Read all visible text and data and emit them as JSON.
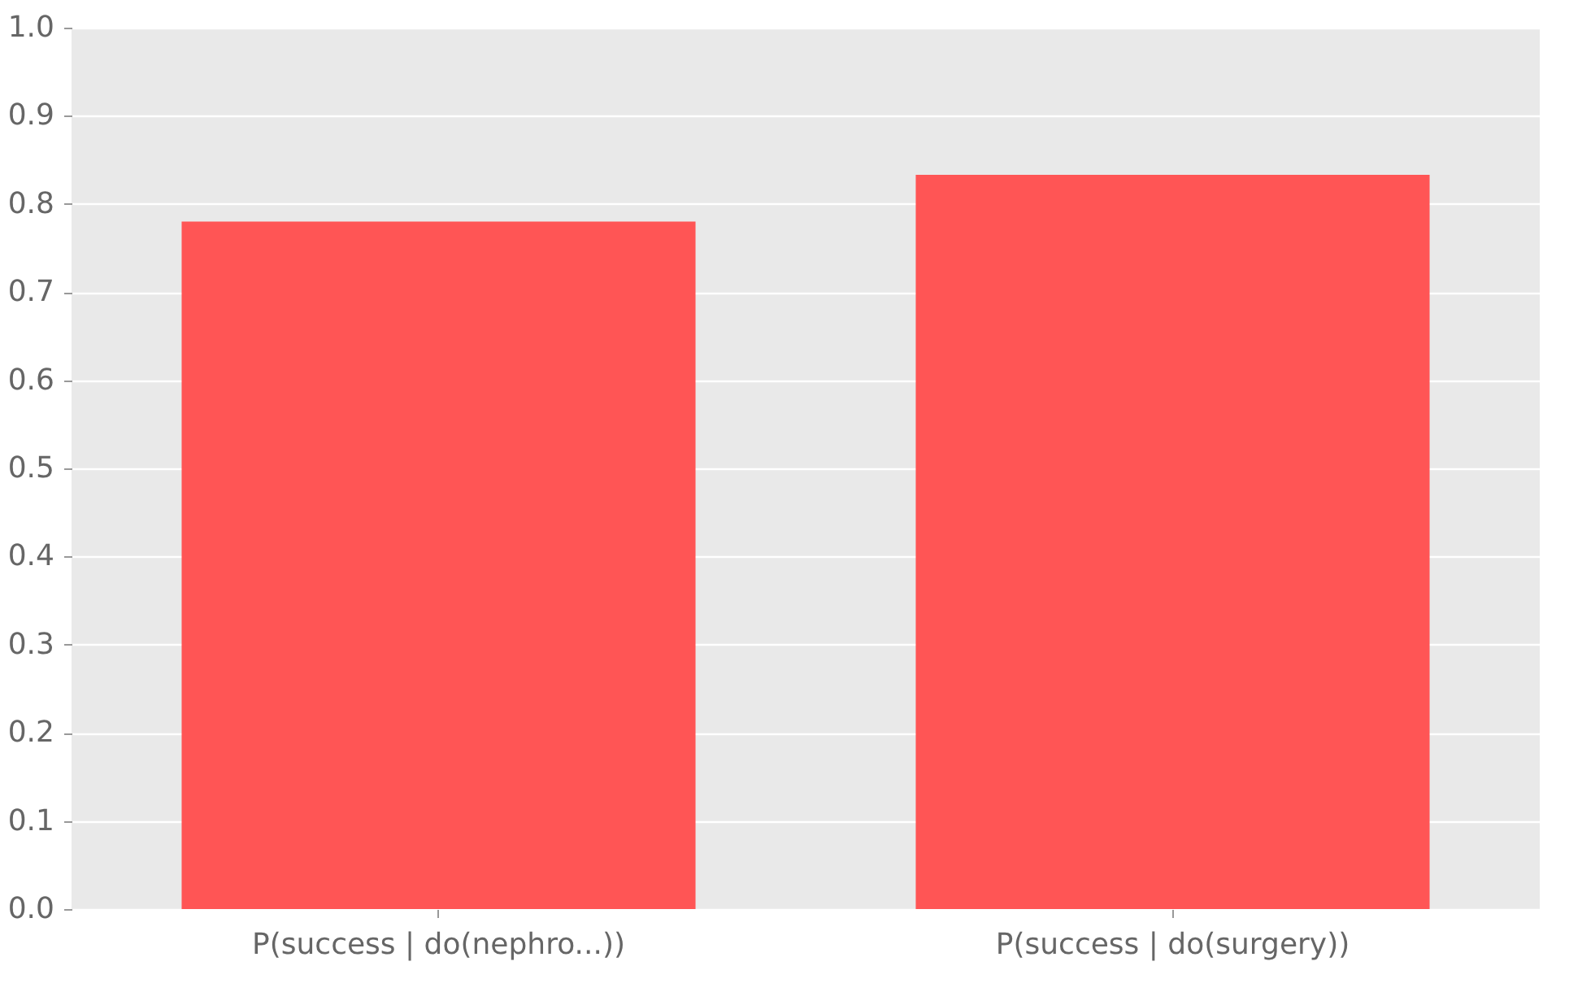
{
  "chart_data": {
    "type": "bar",
    "categories": [
      "P(success | do(nephro...))",
      "P(success | do(surgery))"
    ],
    "values": [
      0.78,
      0.833
    ],
    "color": "#ff5555",
    "ylim": [
      0,
      1
    ],
    "yticks": [
      {
        "value": 0,
        "label": "0.0"
      },
      0.1,
      0.2,
      0.3,
      0.4,
      0.5,
      0.6,
      0.7,
      0.8,
      0.9,
      {
        "value": 1,
        "label": "1.0"
      }
    ],
    "grid": "y"
  }
}
